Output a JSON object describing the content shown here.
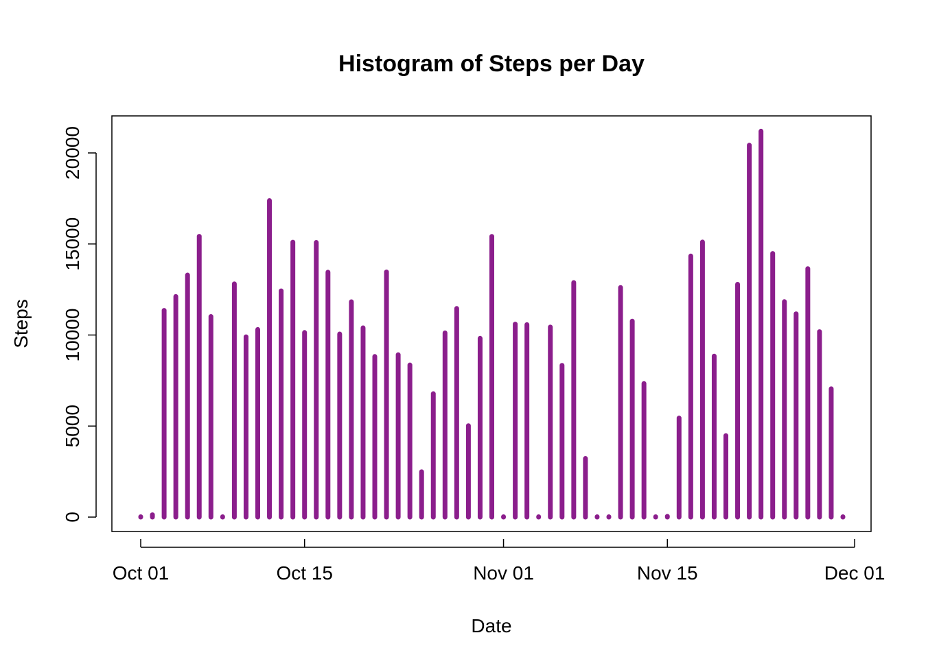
{
  "chart_data": {
    "type": "bar",
    "title": "Histogram of Steps per Day",
    "xlabel": "Date",
    "ylabel": "Steps",
    "color": "#8B1E8C",
    "ylim": [
      0,
      22000
    ],
    "xlim": [
      "2012-09-30",
      "2012-12-01"
    ],
    "x_ticks": [
      {
        "date": "2012-10-01",
        "label": "Oct 01"
      },
      {
        "date": "2012-10-15",
        "label": "Oct 15"
      },
      {
        "date": "2012-11-01",
        "label": "Nov 01"
      },
      {
        "date": "2012-11-15",
        "label": "Nov 15"
      },
      {
        "date": "2012-12-01",
        "label": "Dec 01"
      }
    ],
    "y_ticks": [
      "0",
      "5000",
      "10000",
      "15000",
      "20000"
    ],
    "grid": false,
    "dates": [
      "2012-10-01",
      "2012-10-02",
      "2012-10-03",
      "2012-10-04",
      "2012-10-05",
      "2012-10-06",
      "2012-10-07",
      "2012-10-08",
      "2012-10-09",
      "2012-10-10",
      "2012-10-11",
      "2012-10-12",
      "2012-10-13",
      "2012-10-14",
      "2012-10-15",
      "2012-10-16",
      "2012-10-17",
      "2012-10-18",
      "2012-10-19",
      "2012-10-20",
      "2012-10-21",
      "2012-10-22",
      "2012-10-23",
      "2012-10-24",
      "2012-10-25",
      "2012-10-26",
      "2012-10-27",
      "2012-10-28",
      "2012-10-29",
      "2012-10-30",
      "2012-10-31",
      "2012-11-01",
      "2012-11-02",
      "2012-11-03",
      "2012-11-04",
      "2012-11-05",
      "2012-11-06",
      "2012-11-07",
      "2012-11-08",
      "2012-11-09",
      "2012-11-10",
      "2012-11-11",
      "2012-11-12",
      "2012-11-13",
      "2012-11-14",
      "2012-11-15",
      "2012-11-16",
      "2012-11-17",
      "2012-11-18",
      "2012-11-19",
      "2012-11-20",
      "2012-11-21",
      "2012-11-22",
      "2012-11-23",
      "2012-11-24",
      "2012-11-25",
      "2012-11-26",
      "2012-11-27",
      "2012-11-28",
      "2012-11-29",
      "2012-11-30"
    ],
    "values": [
      0,
      126,
      11352,
      12116,
      13294,
      15420,
      11015,
      0,
      12811,
      9900,
      10304,
      17382,
      12426,
      15098,
      10139,
      15084,
      13452,
      10056,
      11829,
      10395,
      8821,
      13460,
      8918,
      8355,
      2492,
      6778,
      10119,
      11458,
      5018,
      9819,
      15414,
      0,
      10600,
      10571,
      0,
      10439,
      8334,
      12883,
      3219,
      0,
      0,
      12608,
      10765,
      7336,
      0,
      41,
      5441,
      14339,
      15110,
      8841,
      4472,
      12787,
      20427,
      21194,
      14478,
      11834,
      11162,
      13646,
      10183,
      7047,
      0
    ]
  }
}
